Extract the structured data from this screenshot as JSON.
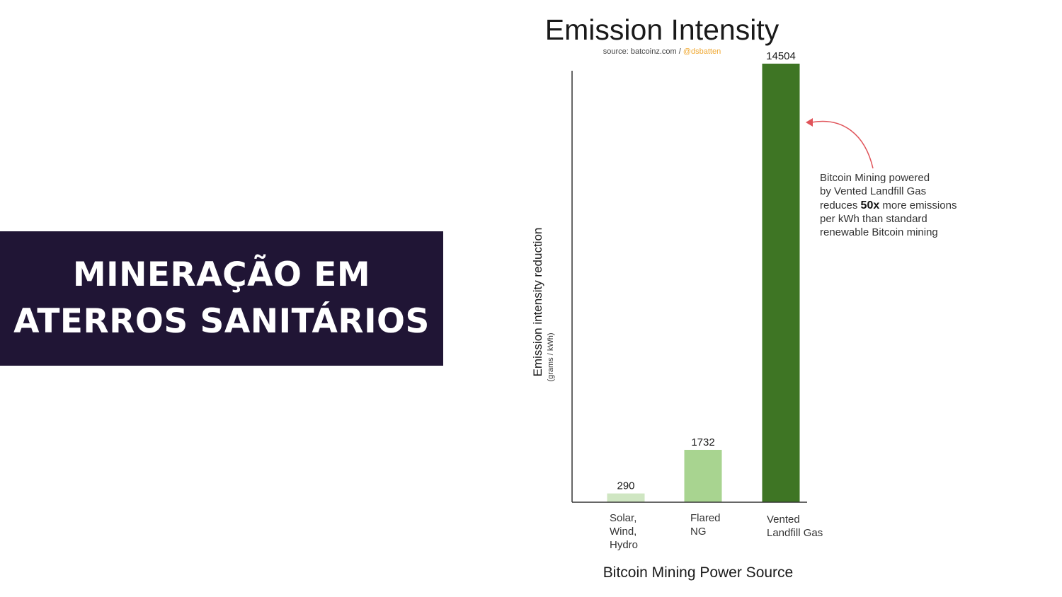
{
  "slide": {
    "heading": "MINERAÇÃO EM\nATERROS SANITÁRIOS",
    "banner_color": "#201535"
  },
  "chart_data": {
    "type": "bar",
    "title": "Emission Intensity",
    "source_prefix": "source: batcoinz.com / ",
    "source_handle": "@dsbatten",
    "ylabel": "Emission intensity reduction",
    "ylabel_unit": "(grams / kWh)",
    "xlabel": "Bitcoin Mining Power Source",
    "categories": [
      [
        "Solar,",
        "Wind,",
        "Hydro"
      ],
      [
        "Flared",
        "NG"
      ],
      [
        "Vented",
        "Landfill Gas"
      ]
    ],
    "values": [
      290,
      1732,
      14504
    ],
    "value_labels": [
      "290",
      "1732",
      "14504"
    ],
    "colors": [
      "#cfe6c2",
      "#a8d490",
      "#3e7524"
    ],
    "ylim": [
      0,
      14504
    ],
    "grid": false,
    "annotation": {
      "line1": "Bitcoin Mining powered",
      "line2": "by Vented Landfill Gas",
      "line3_before": "reduces ",
      "line3_bold": "50x",
      "line3_after": " more emissions",
      "line4": "per kWh than standard",
      "line5": "renewable Bitcoin mining",
      "arrow_color": "#e0545a",
      "target": "Vented Landfill Gas"
    },
    "source_handle_color": "#f0a830"
  }
}
